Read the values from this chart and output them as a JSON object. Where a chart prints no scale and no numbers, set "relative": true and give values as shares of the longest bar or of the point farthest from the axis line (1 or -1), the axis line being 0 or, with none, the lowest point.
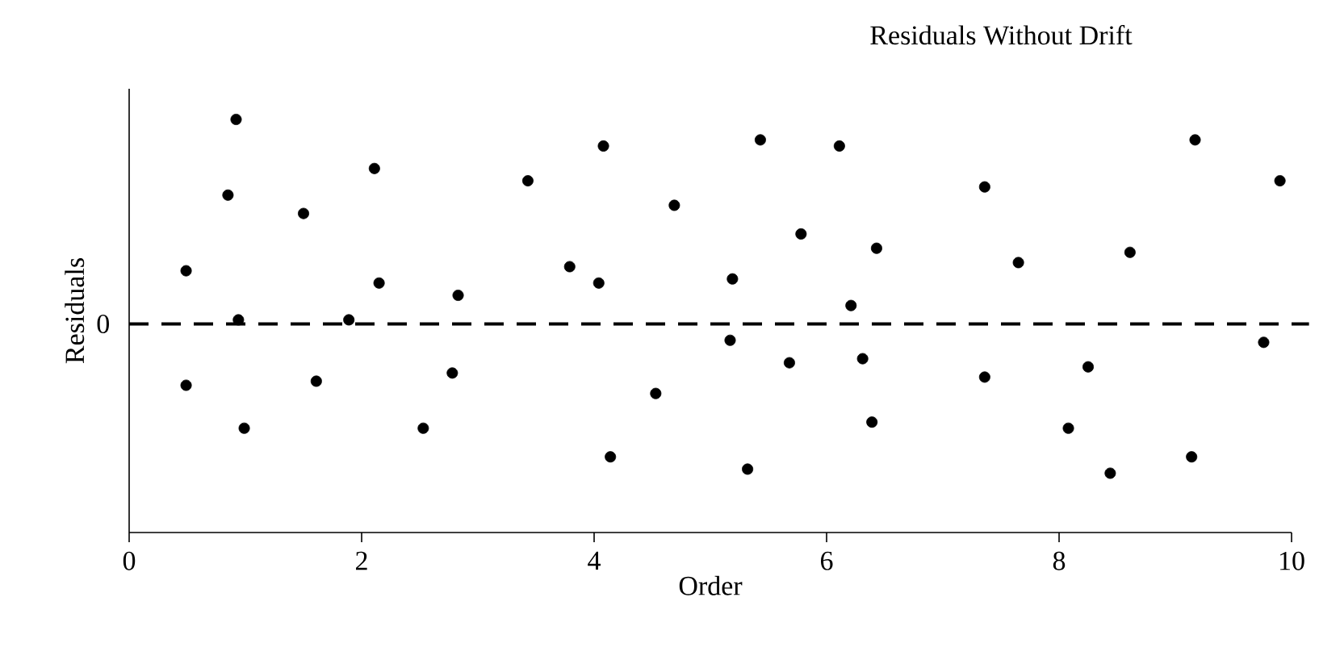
{
  "chart_data": {
    "type": "scatter",
    "title": "Residuals Without Drift",
    "xlabel": "Order",
    "ylabel": "Residuals",
    "relative": true,
    "color": "#000000",
    "xlim": [
      0,
      10
    ],
    "xticks": [
      0,
      2,
      4,
      6,
      8,
      10
    ],
    "ref_lines": [
      {
        "axis": "y",
        "value": 0,
        "label": "0",
        "line_style": "dashed",
        "color": "#000000"
      }
    ],
    "x": [
      0.49,
      0.49,
      0.92,
      0.85,
      0.94,
      0.99,
      1.5,
      1.61,
      1.89,
      2.11,
      2.15,
      2.53,
      2.78,
      2.83,
      3.43,
      3.79,
      4.08,
      4.04,
      4.14,
      4.53,
      4.69,
      5.19,
      5.17,
      5.32,
      5.43,
      5.68,
      5.78,
      6.11,
      6.21,
      6.31,
      6.39,
      6.43,
      7.36,
      7.36,
      7.65,
      8.08,
      8.25,
      8.44,
      8.61,
      9.14,
      9.17,
      9.76,
      9.9
    ],
    "values": [
      0.26,
      -0.3,
      1.0,
      0.63,
      0.02,
      -0.51,
      0.54,
      -0.28,
      0.02,
      0.76,
      0.2,
      -0.51,
      -0.24,
      0.14,
      0.7,
      0.28,
      0.87,
      0.2,
      -0.65,
      -0.34,
      0.58,
      0.22,
      -0.08,
      -0.71,
      0.9,
      -0.19,
      0.44,
      0.87,
      0.09,
      -0.17,
      -0.48,
      0.37,
      -0.26,
      0.67,
      0.3,
      -0.51,
      -0.21,
      -0.73,
      0.35,
      -0.65,
      0.9,
      -0.09,
      0.7
    ]
  }
}
